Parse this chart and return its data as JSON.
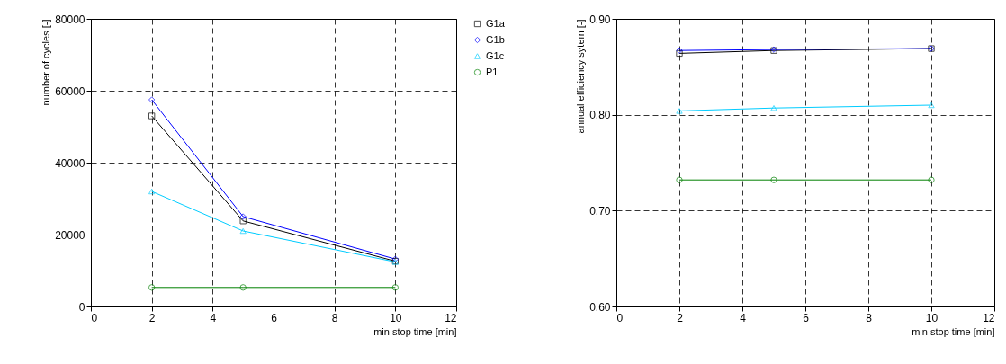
{
  "chart_data": [
    {
      "type": "line",
      "xlabel": "min stop time [min]",
      "ylabel": "number of cycles [-]",
      "xlim": [
        0,
        12
      ],
      "xticks": [
        0,
        2,
        4,
        6,
        8,
        10,
        12
      ],
      "ylim": [
        0,
        80000
      ],
      "yticks": [
        0,
        20000,
        40000,
        60000,
        80000
      ],
      "grid": true,
      "legend": "right",
      "line_style": "solid",
      "series": [
        {
          "name": "G1a",
          "color": "#000000",
          "marker": "square",
          "x": [
            2,
            5,
            10
          ],
          "values": [
            53000,
            23800,
            12600
          ]
        },
        {
          "name": "G1b",
          "color": "#0000ff",
          "marker": "diamond",
          "x": [
            2,
            5,
            10
          ],
          "values": [
            57500,
            25000,
            13200
          ]
        },
        {
          "name": "G1c",
          "color": "#00ccff",
          "marker": "triangle",
          "x": [
            2,
            5,
            10
          ],
          "values": [
            32000,
            21000,
            12400
          ]
        },
        {
          "name": "P1",
          "color": "#008000",
          "marker": "circle",
          "x": [
            2,
            5,
            10
          ],
          "values": [
            5300,
            5300,
            5300
          ]
        }
      ]
    },
    {
      "type": "line",
      "xlabel": "min stop time [min]",
      "ylabel": "annual efficiency sytem [-]",
      "xlim": [
        0,
        12
      ],
      "xticks": [
        0,
        2,
        4,
        6,
        8,
        10,
        12
      ],
      "ylim": [
        0.6,
        0.9
      ],
      "yticks": [
        {
          "value": 0.6,
          "label": "0.60"
        },
        {
          "value": 0.7,
          "label": "0.70"
        },
        {
          "value": 0.8,
          "label": "0.80"
        },
        {
          "value": 0.9,
          "label": "0.90"
        }
      ],
      "grid": true,
      "line_style": "solid",
      "series": [
        {
          "color": "#000000",
          "marker": "square",
          "x": [
            2,
            5,
            10
          ],
          "values": [
            0.864,
            0.867,
            0.869
          ]
        },
        {
          "color": "#0000ff",
          "marker": "diamond",
          "x": [
            2,
            5,
            10
          ],
          "values": [
            0.867,
            0.868,
            0.869
          ]
        },
        {
          "color": "#00ccff",
          "marker": "triangle",
          "x": [
            2,
            5,
            10
          ],
          "values": [
            0.804,
            0.807,
            0.81
          ]
        },
        {
          "color": "#008000",
          "marker": "circle",
          "x": [
            2,
            5,
            10
          ],
          "values": [
            0.732,
            0.732,
            0.732
          ]
        }
      ]
    }
  ]
}
